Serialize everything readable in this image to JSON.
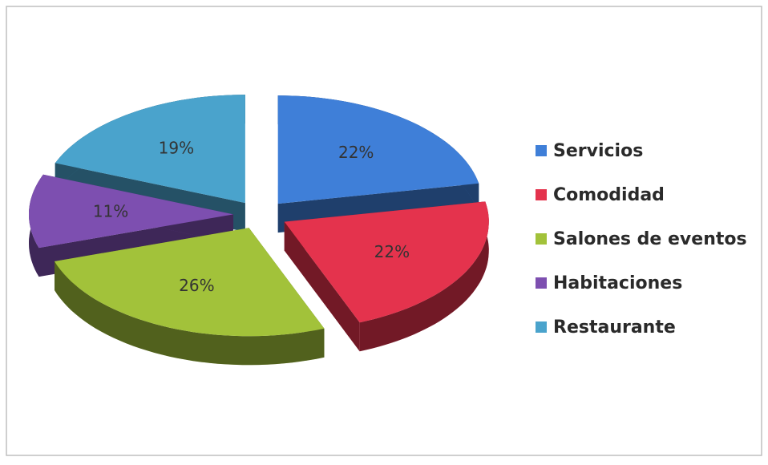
{
  "chart_data": {
    "type": "pie",
    "categories": [
      "Servicios",
      "Comodidad",
      "Salones de eventos",
      "Habitaciones",
      "Restaurante"
    ],
    "values": [
      22,
      22,
      26,
      11,
      19
    ],
    "value_labels": [
      "22%",
      "22%",
      "26%",
      "11%",
      "19%"
    ],
    "colors": [
      "#3f7fd8",
      "#e4334d",
      "#a2c23a",
      "#7d4fb0",
      "#4aa3cc"
    ],
    "legend": "right"
  }
}
